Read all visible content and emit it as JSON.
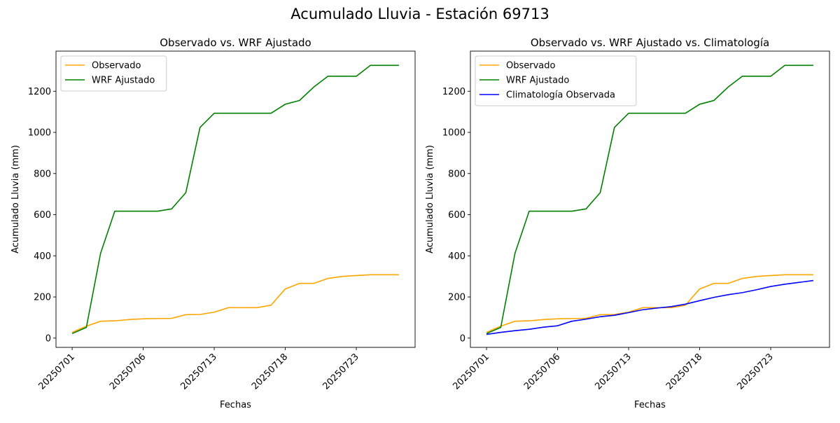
{
  "figure": {
    "suptitle": "Acumulado Lluvia - Estación 69713"
  },
  "chart_data": [
    {
      "type": "line",
      "title": "Observado vs. WRF Ajustado",
      "xlabel": "Fechas",
      "ylabel": "Acumulado Lluvia (mm)",
      "x_tick_labels": [
        "20250701",
        "20250706",
        "20250713",
        "20250718",
        "20250723"
      ],
      "y_ticks": [
        0,
        200,
        400,
        600,
        800,
        1000,
        1200
      ],
      "legend_location": "upper-left",
      "series": [
        {
          "name": "Observado",
          "color": "#ffa500",
          "values": [
            28,
            58,
            82,
            84,
            90,
            94,
            95,
            96,
            114,
            115,
            126,
            148,
            148,
            148,
            160,
            239,
            266,
            266,
            290,
            300,
            304,
            308,
            308,
            308
          ]
        },
        {
          "name": "WRF Ajustado",
          "color": "#008000",
          "values": [
            22,
            52,
            412,
            617,
            617,
            617,
            617,
            628,
            707,
            1024,
            1093,
            1093,
            1093,
            1093,
            1093,
            1137,
            1155,
            1220,
            1273,
            1273,
            1273,
            1326,
            1326,
            1326
          ]
        }
      ]
    },
    {
      "type": "line",
      "title": "Observado vs. WRF Ajustado vs. Climatología",
      "xlabel": "Fechas",
      "ylabel": "Acumulado Lluvia (mm)",
      "x_tick_labels": [
        "20250701",
        "20250706",
        "20250713",
        "20250718",
        "20250723"
      ],
      "y_ticks": [
        0,
        200,
        400,
        600,
        800,
        1000,
        1200
      ],
      "legend_location": "upper-left",
      "series": [
        {
          "name": "Observado",
          "color": "#ffa500",
          "values": [
            28,
            58,
            82,
            84,
            90,
            94,
            95,
            96,
            114,
            115,
            126,
            148,
            148,
            148,
            160,
            239,
            266,
            266,
            290,
            300,
            304,
            308,
            308,
            308
          ]
        },
        {
          "name": "WRF Ajustado",
          "color": "#008000",
          "values": [
            22,
            52,
            412,
            617,
            617,
            617,
            617,
            628,
            707,
            1024,
            1093,
            1093,
            1093,
            1093,
            1093,
            1137,
            1155,
            1220,
            1273,
            1273,
            1273,
            1326,
            1326,
            1326
          ]
        },
        {
          "name": "Climatología Observada",
          "color": "#0000ff",
          "values": [
            18,
            28,
            36,
            43,
            53,
            60,
            82,
            92,
            104,
            111,
            124,
            138,
            146,
            153,
            165,
            182,
            198,
            211,
            221,
            235,
            251,
            262,
            271,
            280
          ]
        }
      ]
    }
  ]
}
